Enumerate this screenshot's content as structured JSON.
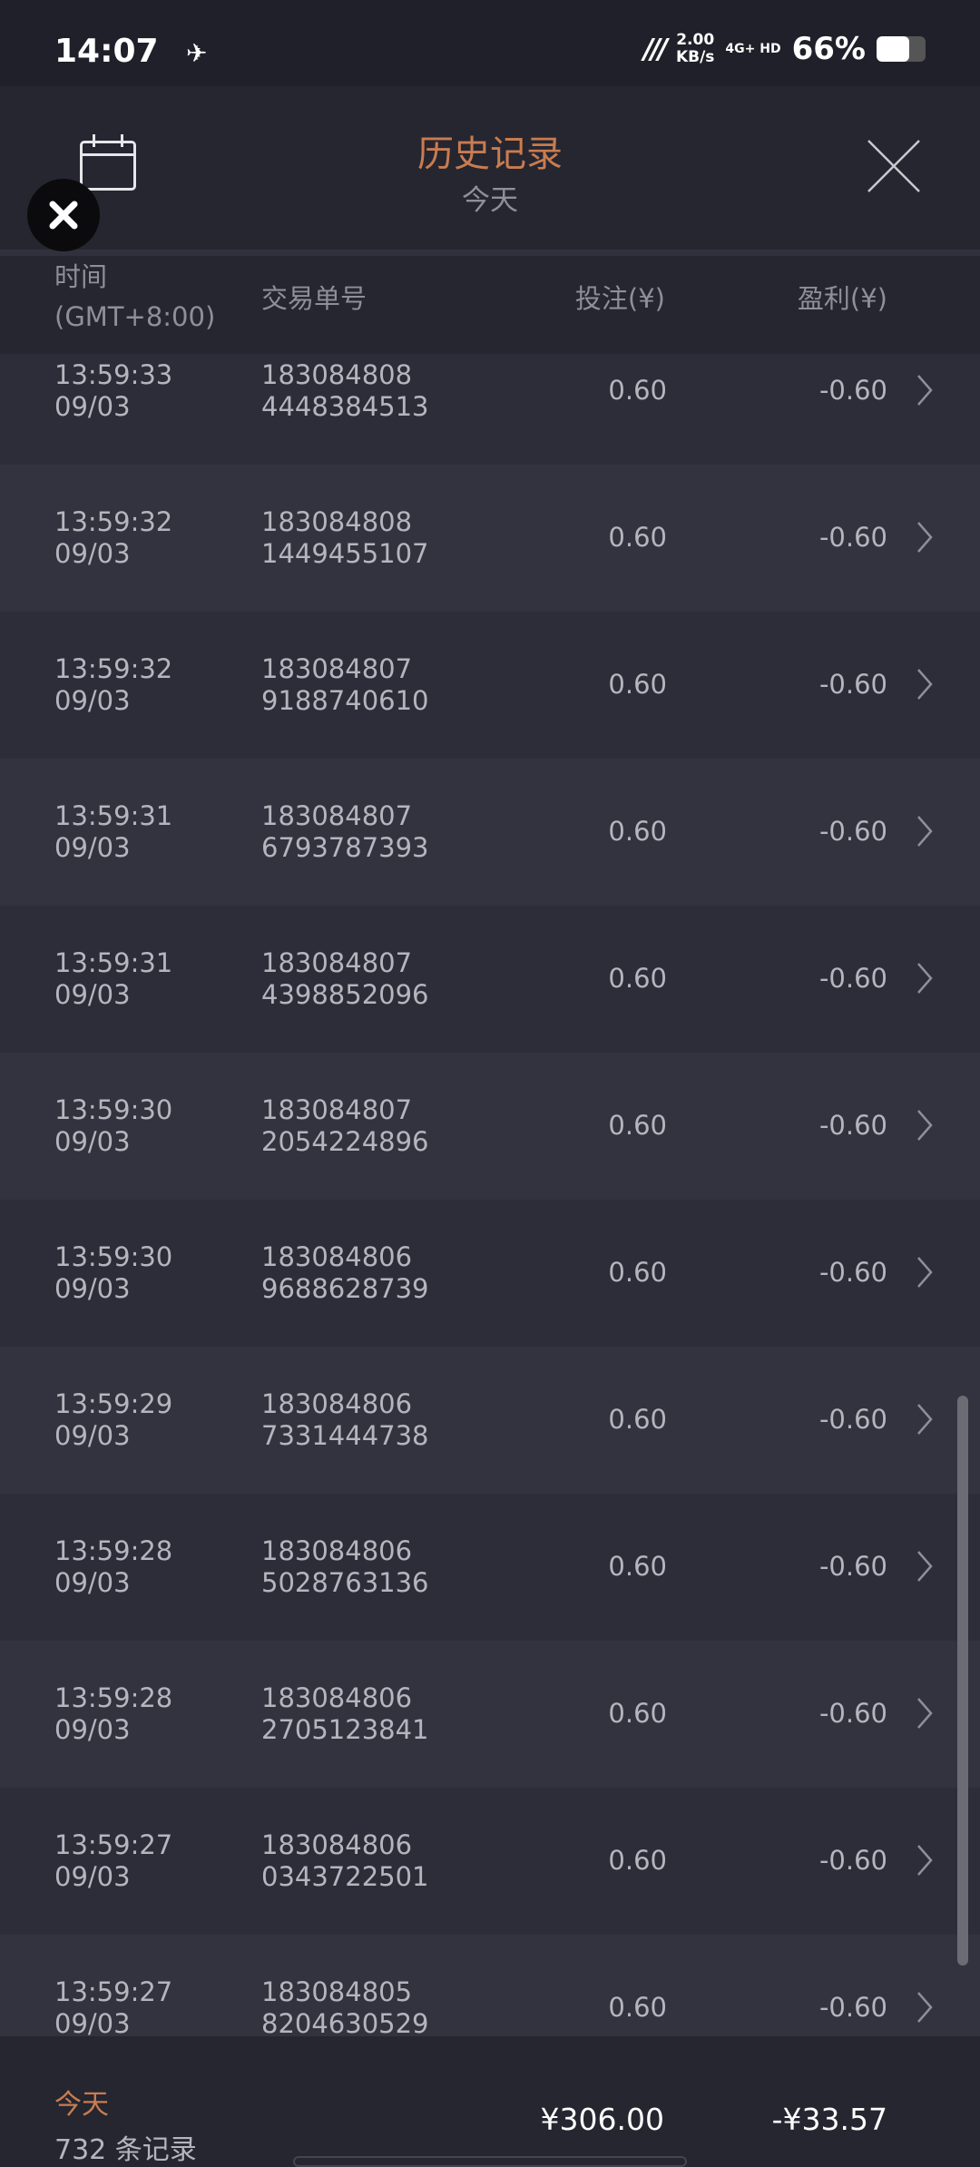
{
  "status_bar": {
    "time": "14:07",
    "net_speed": "2.00",
    "net_unit": "KB/s",
    "network": "4G+ HD",
    "battery": "66%",
    "battery_level": 0.66
  },
  "header": {
    "title": "历史记录",
    "subtitle": "今天",
    "calendar_icon": "calendar-icon",
    "close_icon": "close-icon"
  },
  "columns": {
    "time": "时间",
    "timezone": "(GMT+8:00)",
    "order": "交易单号",
    "bet": "投注(¥)",
    "profit": "盈利(¥)"
  },
  "rows": [
    {
      "time": "13:59:33",
      "date": "09/03",
      "order1": "183084808",
      "order2": "4448384513",
      "bet": "0.60",
      "profit": "-0.60"
    },
    {
      "time": "13:59:32",
      "date": "09/03",
      "order1": "183084808",
      "order2": "1449455107",
      "bet": "0.60",
      "profit": "-0.60"
    },
    {
      "time": "13:59:32",
      "date": "09/03",
      "order1": "183084807",
      "order2": "9188740610",
      "bet": "0.60",
      "profit": "-0.60"
    },
    {
      "time": "13:59:31",
      "date": "09/03",
      "order1": "183084807",
      "order2": "6793787393",
      "bet": "0.60",
      "profit": "-0.60"
    },
    {
      "time": "13:59:31",
      "date": "09/03",
      "order1": "183084807",
      "order2": "4398852096",
      "bet": "0.60",
      "profit": "-0.60"
    },
    {
      "time": "13:59:30",
      "date": "09/03",
      "order1": "183084807",
      "order2": "2054224896",
      "bet": "0.60",
      "profit": "-0.60"
    },
    {
      "time": "13:59:30",
      "date": "09/03",
      "order1": "183084806",
      "order2": "9688628739",
      "bet": "0.60",
      "profit": "-0.60"
    },
    {
      "time": "13:59:29",
      "date": "09/03",
      "order1": "183084806",
      "order2": "7331444738",
      "bet": "0.60",
      "profit": "-0.60"
    },
    {
      "time": "13:59:28",
      "date": "09/03",
      "order1": "183084806",
      "order2": "5028763136",
      "bet": "0.60",
      "profit": "-0.60"
    },
    {
      "time": "13:59:28",
      "date": "09/03",
      "order1": "183084806",
      "order2": "2705123841",
      "bet": "0.60",
      "profit": "-0.60"
    },
    {
      "time": "13:59:27",
      "date": "09/03",
      "order1": "183084806",
      "order2": "0343722501",
      "bet": "0.60",
      "profit": "-0.60"
    },
    {
      "time": "13:59:27",
      "date": "09/03",
      "order1": "183084805",
      "order2": "8204630529",
      "bet": "0.60",
      "profit": "-0.60"
    }
  ],
  "footer": {
    "period": "今天",
    "count": "732 条记录",
    "total_bet": "¥306.00",
    "total_profit": "-¥33.57"
  },
  "colors": {
    "accent": "#c97c50",
    "background": "#2b2c37",
    "header": "#252630"
  }
}
